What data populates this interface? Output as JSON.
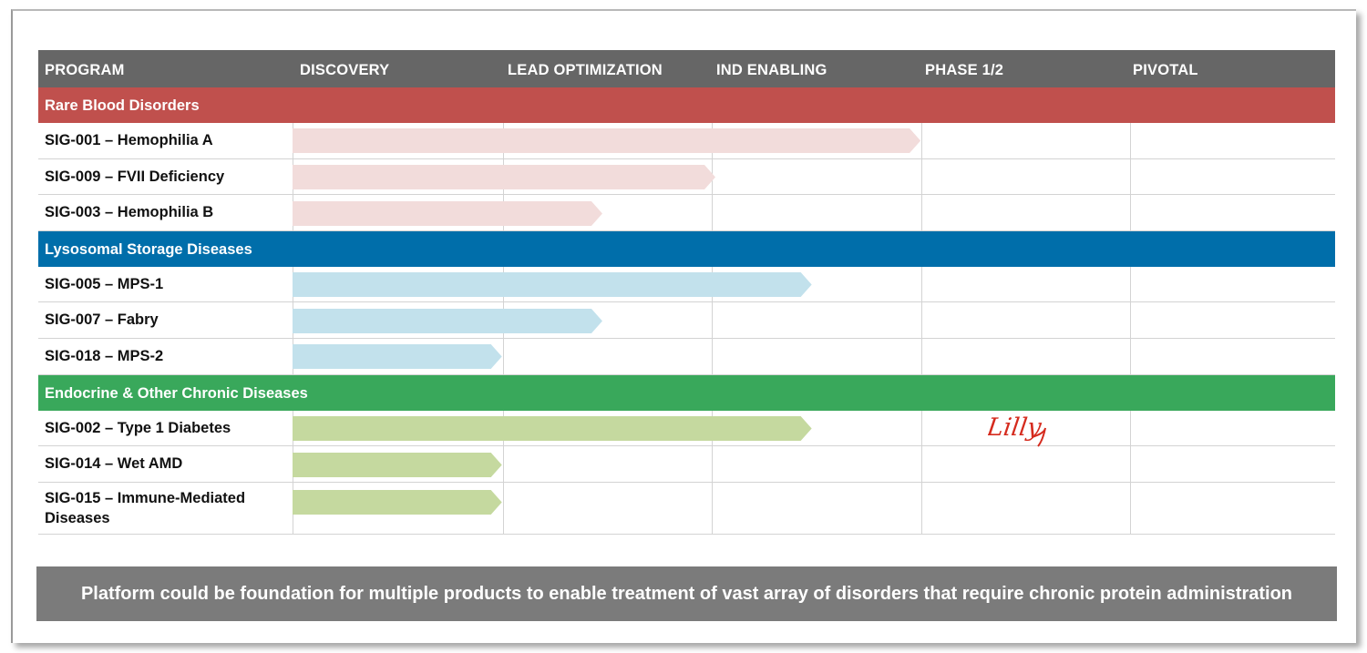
{
  "header": {
    "columns": [
      "PROGRAM",
      "DISCOVERY",
      "LEAD OPTIMIZATION",
      "IND ENABLING",
      "PHASE 1/2",
      "PIVOTAL"
    ]
  },
  "categories": [
    {
      "name": "Rare Blood Disorders",
      "color": "#c0504d",
      "arrow_color": "#f2dcdb",
      "programs": [
        {
          "label": "SIG-001 – Hemophilia A",
          "progress_stage": 3.0
        },
        {
          "label": "SIG-009 – FVII Deficiency",
          "progress_stage": 2.02
        },
        {
          "label": "SIG-003 – Hemophilia B",
          "progress_stage": 1.48
        }
      ]
    },
    {
      "name": "Lysosomal Storage Diseases",
      "color": "#006eaa",
      "arrow_color": "#c2e1ec",
      "programs": [
        {
          "label": "SIG-005 – MPS-1",
          "progress_stage": 2.48
        },
        {
          "label": "SIG-007 – Fabry",
          "progress_stage": 1.48
        },
        {
          "label": "SIG-018 – MPS-2",
          "progress_stage": 1.0
        }
      ]
    },
    {
      "name": "Endocrine & Other Chronic Diseases",
      "color": "#39a85b",
      "arrow_color": "#c5d99f",
      "programs": [
        {
          "label": "SIG-002 – Type 1 Diabetes",
          "progress_stage": 2.48,
          "partner": "Lilly"
        },
        {
          "label": "SIG-014 – Wet AMD",
          "progress_stage": 1.0
        },
        {
          "label": "SIG-015 – Immune-Mediated Diseases",
          "progress_stage": 1.0
        }
      ]
    }
  ],
  "partner_logo": {
    "text": "Lilly",
    "color": "#d52b1e"
  },
  "banner": {
    "text": "Platform could be foundation for multiple products to enable treatment of vast array of disorders that require chronic protein administration"
  }
}
